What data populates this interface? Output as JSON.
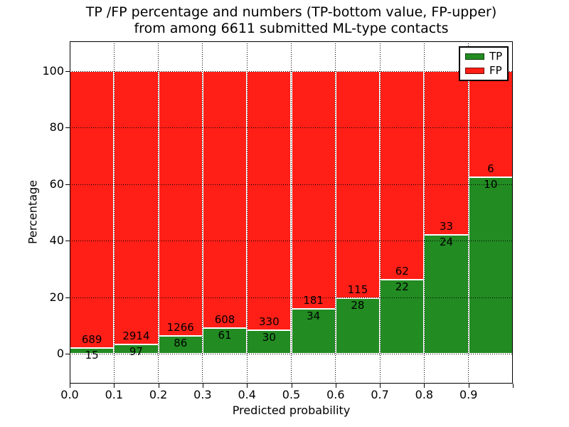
{
  "title": {
    "line1": "TP /FP percentage and numbers (TP-bottom value, FP-upper)",
    "line2": "from among 6611 submitted ML-type contacts"
  },
  "axes": {
    "xlabel": "Predicted probability",
    "ylabel": "Percentage",
    "yticks": [
      "0",
      "20",
      "40",
      "60",
      "80",
      "100"
    ],
    "xticks": [
      "0.0",
      "0.1",
      "0.2",
      "0.3",
      "0.4",
      "0.5",
      "0.6",
      "0.7",
      "0.8",
      "0.9"
    ]
  },
  "legend": {
    "items": [
      {
        "label": "TP",
        "color": "#228b22"
      },
      {
        "label": "FP",
        "color": "#ff1f17"
      }
    ]
  },
  "colors": {
    "tp": "#228b22",
    "fp": "#ff1f17",
    "grid": "#000000",
    "frame": "#000000",
    "bar_edge": "#ffffff",
    "background": "#ffffff",
    "text": "#000000"
  },
  "chart_data": {
    "type": "bar",
    "stacked": true,
    "normalized": "each bar totals 100%; segment heights are percent of bin, labels show raw counts",
    "title": "TP /FP percentage and numbers (TP-bottom value, FP-upper) from among 6611 submitted ML-type contacts",
    "xlabel": "Predicted probability",
    "ylabel": "Percentage",
    "total_contacts": 6611,
    "categories": [
      "0.0-0.1",
      "0.1-0.2",
      "0.2-0.3",
      "0.3-0.4",
      "0.4-0.5",
      "0.5-0.6",
      "0.6-0.7",
      "0.7-0.8",
      "0.8-0.9",
      "0.9-1.0"
    ],
    "series": [
      {
        "name": "TP",
        "color": "#228b22",
        "counts": [
          15,
          97,
          86,
          61,
          30,
          34,
          28,
          22,
          24,
          10
        ]
      },
      {
        "name": "FP",
        "color": "#ff1f17",
        "counts": [
          689,
          2914,
          1266,
          608,
          330,
          181,
          115,
          62,
          33,
          6
        ]
      }
    ],
    "tp_percent_of_bin": [
      2.1,
      3.2,
      6.4,
      9.1,
      8.3,
      15.8,
      19.6,
      26.2,
      42.1,
      62.5
    ],
    "xlim": [
      0,
      1
    ],
    "ylim": [
      -10.6,
      110.6
    ],
    "grid": "dotted",
    "legend_position": "upper right"
  }
}
